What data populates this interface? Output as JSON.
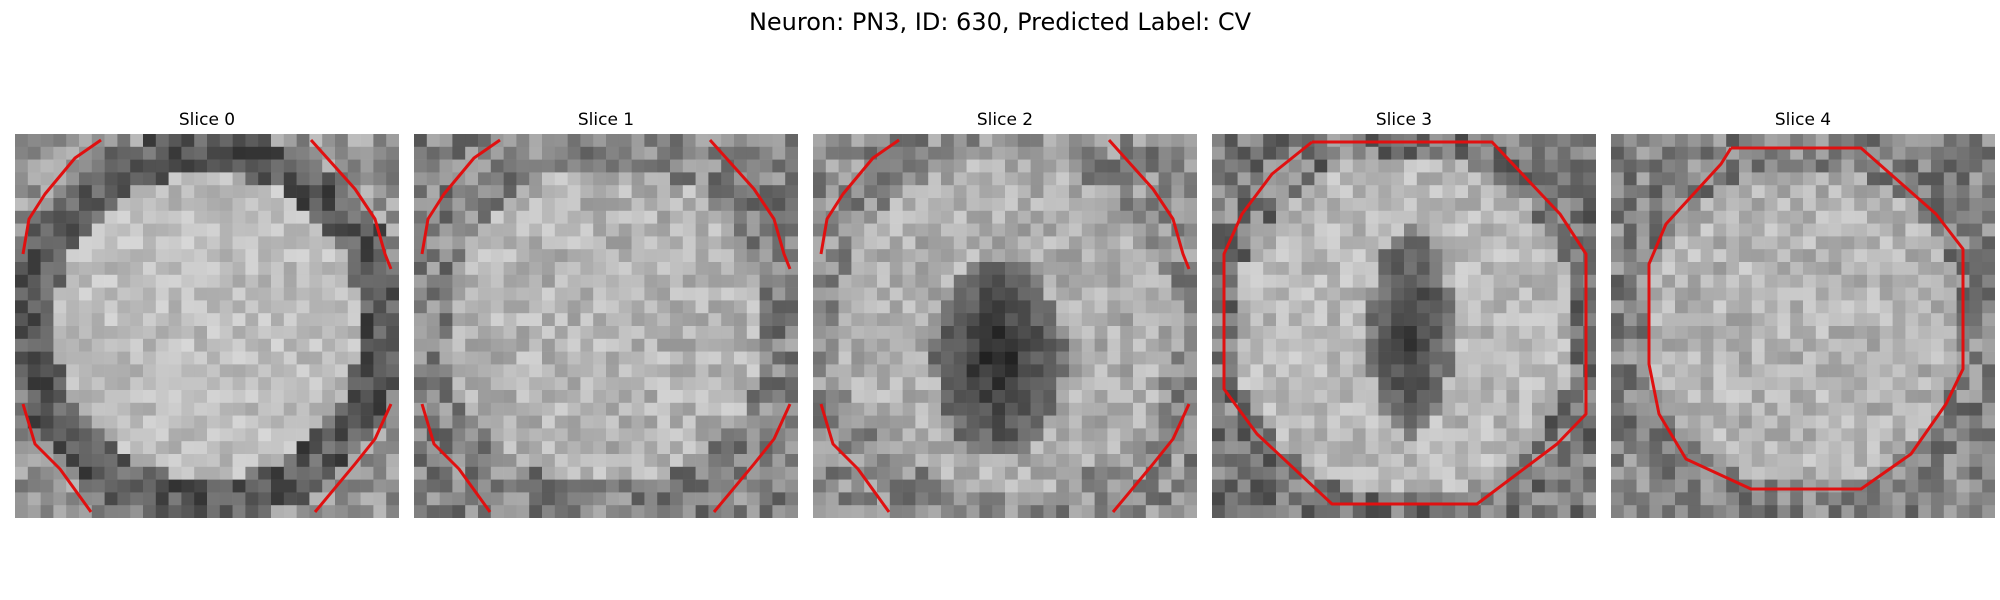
{
  "figure": {
    "title": "Neuron: PN3, ID: 630, Predicted Label: CV"
  },
  "panels": [
    {
      "title": "Slice 0",
      "pattern": "ring-dark",
      "contour": "corners",
      "contour_color": "#e01010"
    },
    {
      "title": "Slice 1",
      "pattern": "faint",
      "contour": "corners",
      "contour_color": "#e01010"
    },
    {
      "title": "Slice 2",
      "pattern": "center-dark",
      "contour": "corners",
      "contour_color": "#e01010"
    },
    {
      "title": "Slice 3",
      "pattern": "center-dark-small",
      "contour": "octagon-large",
      "contour_color": "#e01010"
    },
    {
      "title": "Slice 4",
      "pattern": "faint",
      "contour": "octagon-small",
      "contour_color": "#e01010"
    }
  ]
}
